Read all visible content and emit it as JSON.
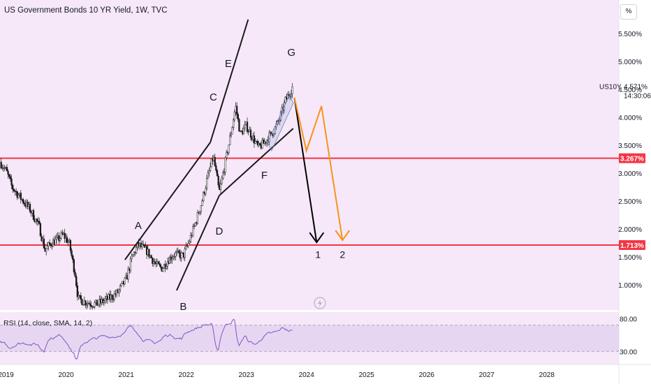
{
  "title": "US Government Bonds 10 YR Yield, 1W, TVC",
  "scale_button": "%",
  "colors": {
    "background": "#f6e8f9",
    "up": "#1a1a1a",
    "support": "#f23645",
    "orange": "#f7931a",
    "rsi": "#7e57c2"
  },
  "chart_data": {
    "type": "candlestick",
    "interval": "1W",
    "source": "TVC",
    "symbol": "US10Y",
    "x_ticks": [
      "2019",
      "2020",
      "2021",
      "2022",
      "2023",
      "2024",
      "2025",
      "2026",
      "2027",
      "2028"
    ],
    "x_range": [
      2018.9,
      2029.2
    ],
    "y_ticks": [
      "1.000%",
      "1.500%",
      "2.000%",
      "2.500%",
      "3.000%",
      "3.500%",
      "4.000%",
      "4.500%",
      "5.000%",
      "5.500%"
    ],
    "y_tick_values": [
      1.0,
      1.5,
      2.0,
      2.5,
      3.0,
      3.5,
      4.0,
      4.5,
      5.0,
      5.5
    ],
    "y_range": [
      0.55,
      6.1
    ],
    "close_path": [
      [
        2018.9,
        3.2
      ],
      [
        2019.0,
        3.05
      ],
      [
        2019.1,
        2.75
      ],
      [
        2019.25,
        2.55
      ],
      [
        2019.4,
        2.35
      ],
      [
        2019.55,
        2.05
      ],
      [
        2019.65,
        1.62
      ],
      [
        2019.75,
        1.75
      ],
      [
        2019.85,
        1.8
      ],
      [
        2019.95,
        1.9
      ],
      [
        2020.05,
        1.75
      ],
      [
        2020.15,
        1.2
      ],
      [
        2020.2,
        0.75
      ],
      [
        2020.3,
        0.7
      ],
      [
        2020.5,
        0.65
      ],
      [
        2020.7,
        0.75
      ],
      [
        2020.85,
        0.85
      ],
      [
        2021.0,
        1.1
      ],
      [
        2021.1,
        1.5
      ],
      [
        2021.2,
        1.72
      ],
      [
        2021.35,
        1.6
      ],
      [
        2021.5,
        1.35
      ],
      [
        2021.6,
        1.3
      ],
      [
        2021.7,
        1.45
      ],
      [
        2021.8,
        1.55
      ],
      [
        2021.95,
        1.52
      ],
      [
        2022.05,
        1.78
      ],
      [
        2022.15,
        2.1
      ],
      [
        2022.25,
        2.45
      ],
      [
        2022.35,
        2.9
      ],
      [
        2022.45,
        3.3
      ],
      [
        2022.55,
        2.65
      ],
      [
        2022.65,
        3.2
      ],
      [
        2022.75,
        3.75
      ],
      [
        2022.82,
        4.2
      ],
      [
        2022.9,
        3.7
      ],
      [
        2023.0,
        3.85
      ],
      [
        2023.1,
        3.65
      ],
      [
        2023.2,
        3.45
      ],
      [
        2023.3,
        3.55
      ],
      [
        2023.45,
        3.75
      ],
      [
        2023.55,
        3.95
      ],
      [
        2023.65,
        4.3
      ],
      [
        2023.75,
        4.5
      ],
      [
        2023.78,
        4.571
      ]
    ],
    "last_price": "4.571%",
    "countdown": "14:30:06",
    "support_levels": [
      {
        "value": 3.267,
        "label": "3.267%"
      },
      {
        "value": 1.713,
        "label": "1.713%"
      }
    ],
    "wave_labels": [
      {
        "text": "A",
        "x": 2021.2,
        "y": 2.0
      },
      {
        "text": "B",
        "x": 2021.95,
        "y": 0.55
      },
      {
        "text": "C",
        "x": 2022.45,
        "y": 4.3
      },
      {
        "text": "D",
        "x": 2022.55,
        "y": 1.9
      },
      {
        "text": "E",
        "x": 2022.7,
        "y": 4.9
      },
      {
        "text": "F",
        "x": 2023.3,
        "y": 2.9
      },
      {
        "text": "G",
        "x": 2023.75,
        "y": 5.1
      }
    ],
    "projections": [
      {
        "name": "1",
        "color": "#000000",
        "points": [
          [
            2023.8,
            4.35
          ],
          [
            2024.17,
            1.76
          ]
        ],
        "label": "1"
      },
      {
        "name": "2",
        "color": "#f7931a",
        "points": [
          [
            2023.8,
            4.35
          ],
          [
            2024.0,
            3.4
          ],
          [
            2024.25,
            4.2
          ],
          [
            2024.6,
            1.8
          ]
        ],
        "label": "2"
      }
    ],
    "rsi": {
      "label": "RSI (14, close, SMA, 14, 2)",
      "ticks": [
        "80.00",
        "30.00"
      ],
      "levels": [
        70,
        30
      ],
      "y_range": [
        10,
        90
      ]
    }
  }
}
